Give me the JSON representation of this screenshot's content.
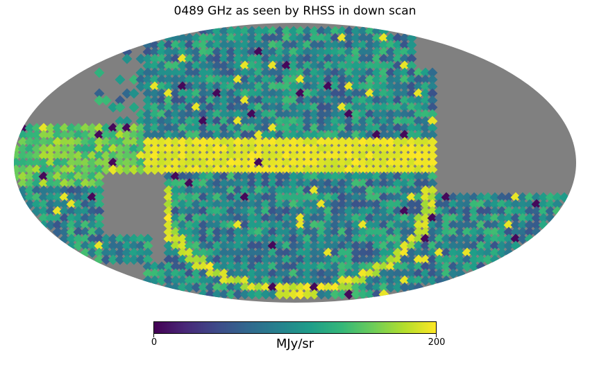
{
  "title": "0489 GHz as seen by RHSS in down scan",
  "projection": "mollweide",
  "colormap": "viridis",
  "masked_color": "#808080",
  "colorbar": {
    "min_label": "0",
    "max_label": "200",
    "unit": "MJy/sr",
    "min": 0,
    "max": 200
  }
}
